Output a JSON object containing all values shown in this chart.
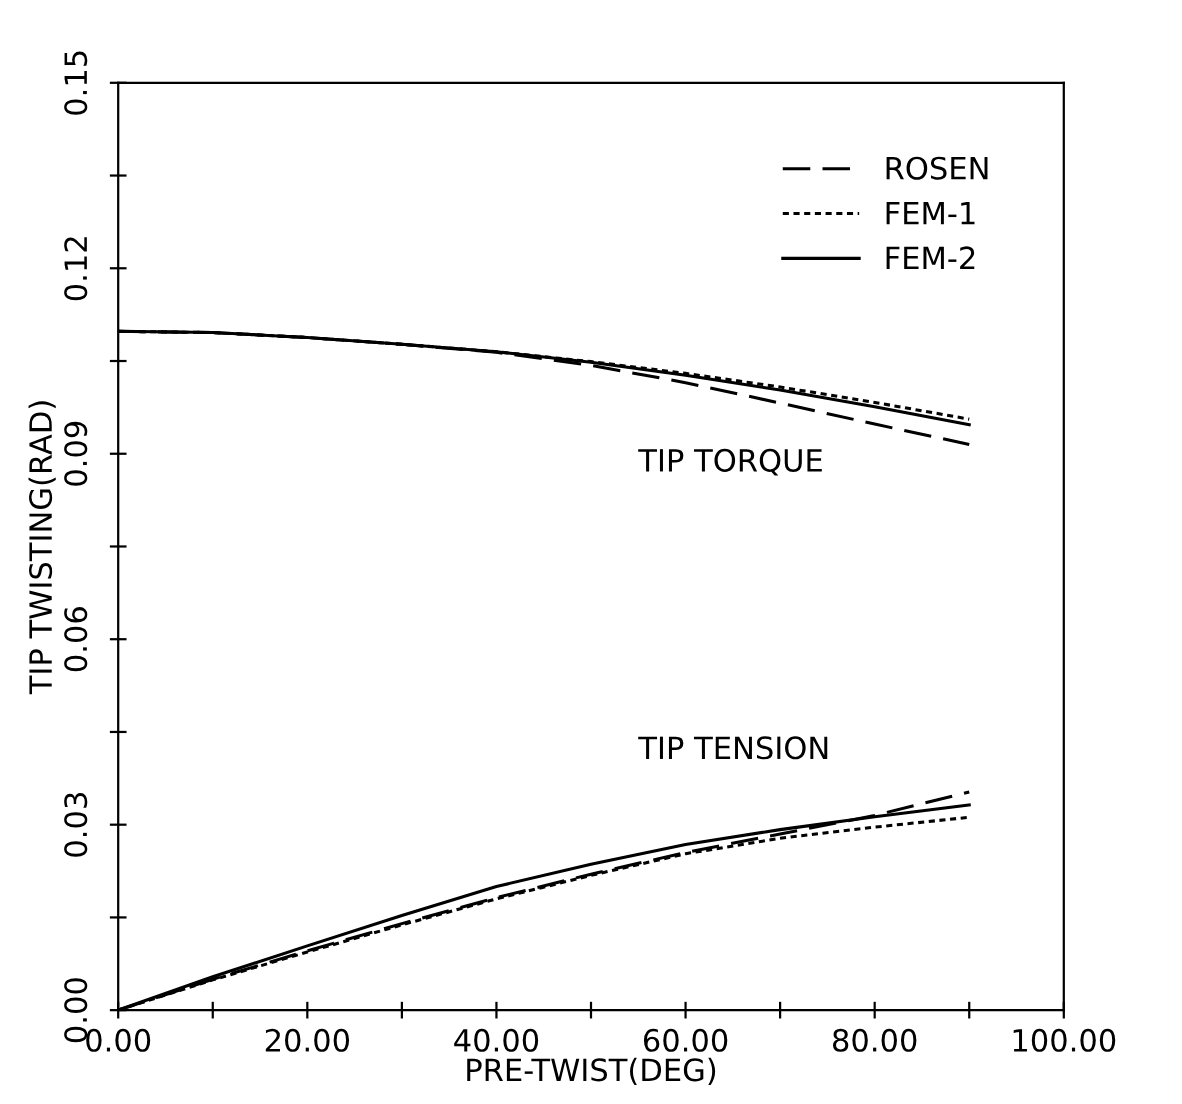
{
  "chart_data": {
    "type": "line",
    "xlabel": "PRE-TWIST(DEG)",
    "ylabel": "TIP TWISTING(RAD)",
    "x": [
      0,
      10,
      20,
      30,
      40,
      50,
      60,
      70,
      80,
      90
    ],
    "series": [
      {
        "name": "ROSEN",
        "color": "#000000",
        "line_style": "dashed",
        "values": [
          0.1098,
          0.1096,
          0.1088,
          0.1077,
          0.1064,
          0.1043,
          0.1015,
          0.0982,
          0.0948,
          0.0915
        ]
      },
      {
        "name": "FEM-1",
        "color": "#000000",
        "line_style": "dotted",
        "values": [
          0.1098,
          0.1096,
          0.1088,
          0.1077,
          0.1065,
          0.1049,
          0.103,
          0.1008,
          0.0983,
          0.0956
        ]
      },
      {
        "name": "FEM-2",
        "color": "#000000",
        "line_style": "solid",
        "values": [
          0.1098,
          0.1096,
          0.1088,
          0.1077,
          0.1065,
          0.1048,
          0.1027,
          0.1003,
          0.0976,
          0.0947
        ]
      },
      {
        "color": "#000000",
        "line_style": "dashed",
        "values": [
          0,
          0.005,
          0.0096,
          0.014,
          0.0182,
          0.022,
          0.0255,
          0.0285,
          0.0315,
          0.0353
        ]
      },
      {
        "color": "#000000",
        "line_style": "dotted",
        "values": [
          0,
          0.0049,
          0.0094,
          0.0138,
          0.018,
          0.0218,
          0.0253,
          0.0278,
          0.0296,
          0.0312
        ]
      },
      {
        "color": "#000000",
        "line_style": "solid",
        "values": [
          0,
          0.0054,
          0.0104,
          0.0153,
          0.02,
          0.0236,
          0.0268,
          0.0292,
          0.0313,
          0.0332
        ]
      }
    ],
    "xlim": [
      0,
      100
    ],
    "ylim": [
      0,
      0.15
    ],
    "xticks": [
      {
        "value": 0,
        "label": "0.00"
      },
      {
        "value": 10,
        "label": null
      },
      {
        "value": 20,
        "label": "20.00"
      },
      {
        "value": 30,
        "label": null
      },
      {
        "value": 40,
        "label": "40.00"
      },
      {
        "value": 50,
        "label": null
      },
      {
        "value": 60,
        "label": "60.00"
      },
      {
        "value": 70,
        "label": null
      },
      {
        "value": 80,
        "label": "80.00"
      },
      {
        "value": 90,
        "label": null
      },
      {
        "value": 100,
        "label": "100.00"
      }
    ],
    "yticks": [
      {
        "value": 0,
        "label": "0.00"
      },
      {
        "value": 0.015,
        "label": null
      },
      {
        "value": 0.03,
        "label": "0.03"
      },
      {
        "value": 0.045,
        "label": null
      },
      {
        "value": 0.06,
        "label": "0.06"
      },
      {
        "value": 0.075,
        "label": null
      },
      {
        "value": 0.09,
        "label": "0.09"
      },
      {
        "value": 0.105,
        "label": null
      },
      {
        "value": 0.12,
        "label": "0.12"
      },
      {
        "value": 0.135,
        "label": null
      },
      {
        "value": 0.15,
        "label": "0.15"
      }
    ],
    "annotations": [
      "TIP TORQUE",
      "TIP TENSION"
    ],
    "legend": "top right",
    "grid": false,
    "marker": "none"
  }
}
